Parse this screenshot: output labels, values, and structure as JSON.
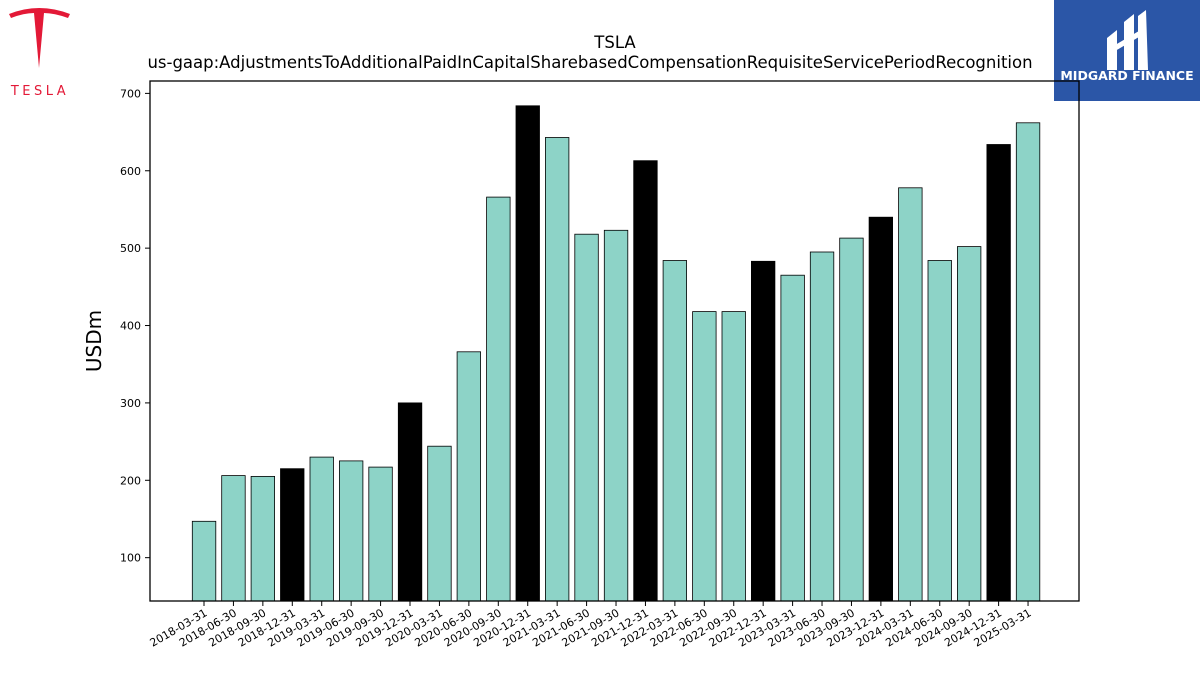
{
  "brand": {
    "left_logo_text": "TESLA",
    "right_logo_text": "MIDGARD FINANCE",
    "tesla_red": "#e31937",
    "midgard_blue": "#2b56a7"
  },
  "chart_data": {
    "type": "bar",
    "title": "TSLA",
    "subtitle": "us-gaap:AdjustmentsToAdditionalPaidInCapitalSharebasedCompensationRequisiteServicePeriodRecognition",
    "xlabel": "",
    "ylabel": "USDm",
    "ylim": [
      44,
      716
    ],
    "yticks": [
      100,
      200,
      300,
      400,
      500,
      600,
      700
    ],
    "grid": false,
    "categories": [
      "2018-03-31",
      "2018-06-30",
      "2018-09-30",
      "2018-12-31",
      "2019-03-31",
      "2019-06-30",
      "2019-09-30",
      "2019-12-31",
      "2020-03-31",
      "2020-06-30",
      "2020-09-30",
      "2020-12-31",
      "2021-03-31",
      "2021-06-30",
      "2021-09-30",
      "2021-12-31",
      "2022-03-31",
      "2022-06-30",
      "2022-09-30",
      "2022-12-31",
      "2023-03-31",
      "2023-06-30",
      "2023-09-30",
      "2023-12-31",
      "2024-03-31",
      "2024-06-30",
      "2024-09-30",
      "2024-12-31",
      "2025-03-31"
    ],
    "values": [
      147,
      206,
      205,
      215,
      230,
      225,
      217,
      300,
      244,
      366,
      566,
      684,
      643,
      518,
      523,
      613,
      484,
      418,
      418,
      483,
      465,
      495,
      513,
      540,
      578,
      484,
      502,
      634,
      662
    ],
    "colors": {
      "regular_quarter": "#8dd3c7",
      "year_end_quarter": "#000000",
      "bar_edge": "#000000"
    }
  }
}
